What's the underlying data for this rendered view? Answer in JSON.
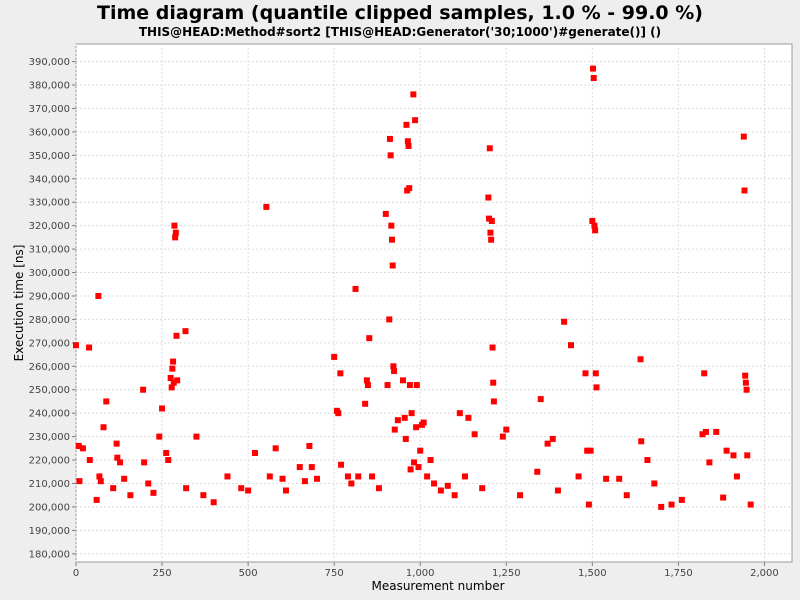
{
  "chart_data": {
    "type": "scatter",
    "title": "Time diagram (quantile clipped samples, 1.0 % - 99.0 %)",
    "subtitle": "THIS@HEAD:Method#sort2 [THIS@HEAD:Generator('30;1000')#generate()] ()",
    "xlabel": "Measurement number",
    "ylabel": "Execution time [ns]",
    "xlim": [
      0,
      2080
    ],
    "ylim": [
      176500,
      397500
    ],
    "xticks": [
      0,
      250,
      500,
      750,
      1000,
      1250,
      1500,
      1750,
      2000
    ],
    "xtick_labels": [
      "0",
      "250",
      "500",
      "750",
      "1,000",
      "1,250",
      "1,500",
      "1,750",
      "2,000"
    ],
    "yticks": [
      180000,
      190000,
      200000,
      210000,
      220000,
      230000,
      240000,
      250000,
      260000,
      270000,
      280000,
      290000,
      300000,
      310000,
      320000,
      330000,
      340000,
      350000,
      360000,
      370000,
      380000,
      390000
    ],
    "ytick_labels": [
      "180,000",
      "190,000",
      "200,000",
      "210,000",
      "220,000",
      "230,000",
      "240,000",
      "250,000",
      "260,000",
      "270,000",
      "280,000",
      "290,000",
      "300,000",
      "310,000",
      "320,000",
      "330,000",
      "340,000",
      "350,000",
      "360,000",
      "370,000",
      "380,000",
      "390,000"
    ],
    "grid": true,
    "marker_color": "#ff0000",
    "series": [
      {
        "values": [
          [
            0,
            269000
          ],
          [
            8,
            226000
          ],
          [
            10,
            211000
          ],
          [
            20,
            225000
          ],
          [
            38,
            268000
          ],
          [
            40,
            220000
          ],
          [
            60,
            203000
          ],
          [
            65,
            290000
          ],
          [
            68,
            213000
          ],
          [
            72,
            211000
          ],
          [
            80,
            234000
          ],
          [
            88,
            245000
          ],
          [
            108,
            208000
          ],
          [
            118,
            227000
          ],
          [
            120,
            221000
          ],
          [
            128,
            219000
          ],
          [
            140,
            212000
          ],
          [
            158,
            205000
          ],
          [
            195,
            250000
          ],
          [
            198,
            219000
          ],
          [
            210,
            210000
          ],
          [
            225,
            206000
          ],
          [
            242,
            230000
          ],
          [
            250,
            242000
          ],
          [
            262,
            223000
          ],
          [
            268,
            220000
          ],
          [
            275,
            255000
          ],
          [
            278,
            251000
          ],
          [
            280,
            259000
          ],
          [
            282,
            262000
          ],
          [
            284,
            253000
          ],
          [
            286,
            320000
          ],
          [
            288,
            315000
          ],
          [
            290,
            317000
          ],
          [
            292,
            273000
          ],
          [
            294,
            254000
          ],
          [
            318,
            275000
          ],
          [
            320,
            208000
          ],
          [
            350,
            230000
          ],
          [
            370,
            205000
          ],
          [
            400,
            202000
          ],
          [
            440,
            213000
          ],
          [
            480,
            208000
          ],
          [
            500,
            207000
          ],
          [
            520,
            223000
          ],
          [
            553,
            328000
          ],
          [
            563,
            213000
          ],
          [
            580,
            225000
          ],
          [
            600,
            212000
          ],
          [
            610,
            207000
          ],
          [
            650,
            217000
          ],
          [
            665,
            211000
          ],
          [
            678,
            226000
          ],
          [
            685,
            217000
          ],
          [
            700,
            212000
          ],
          [
            750,
            264000
          ],
          [
            758,
            241000
          ],
          [
            762,
            240000
          ],
          [
            768,
            257000
          ],
          [
            770,
            218000
          ],
          [
            790,
            213000
          ],
          [
            800,
            210000
          ],
          [
            812,
            293000
          ],
          [
            820,
            213000
          ],
          [
            840,
            244000
          ],
          [
            845,
            254000
          ],
          [
            848,
            252000
          ],
          [
            852,
            272000
          ],
          [
            860,
            213000
          ],
          [
            880,
            208000
          ],
          [
            900,
            325000
          ],
          [
            905,
            252000
          ],
          [
            910,
            280000
          ],
          [
            912,
            357000
          ],
          [
            914,
            350000
          ],
          [
            916,
            320000
          ],
          [
            918,
            314000
          ],
          [
            920,
            303000
          ],
          [
            922,
            260000
          ],
          [
            924,
            258000
          ],
          [
            926,
            233000
          ],
          [
            935,
            237000
          ],
          [
            950,
            254000
          ],
          [
            955,
            238000
          ],
          [
            958,
            229000
          ],
          [
            960,
            363000
          ],
          [
            962,
            335000
          ],
          [
            964,
            356000
          ],
          [
            966,
            354000
          ],
          [
            968,
            336000
          ],
          [
            970,
            252000
          ],
          [
            972,
            216000
          ],
          [
            975,
            240000
          ],
          [
            980,
            376000
          ],
          [
            982,
            219000
          ],
          [
            985,
            365000
          ],
          [
            988,
            234000
          ],
          [
            990,
            252000
          ],
          [
            995,
            217000
          ],
          [
            1000,
            224000
          ],
          [
            1005,
            235000
          ],
          [
            1010,
            236000
          ],
          [
            1020,
            213000
          ],
          [
            1030,
            220000
          ],
          [
            1040,
            210000
          ],
          [
            1060,
            207000
          ],
          [
            1080,
            209000
          ],
          [
            1100,
            205000
          ],
          [
            1115,
            240000
          ],
          [
            1130,
            213000
          ],
          [
            1140,
            238000
          ],
          [
            1158,
            231000
          ],
          [
            1180,
            208000
          ],
          [
            1198,
            332000
          ],
          [
            1200,
            323000
          ],
          [
            1202,
            353000
          ],
          [
            1204,
            317000
          ],
          [
            1206,
            314000
          ],
          [
            1208,
            322000
          ],
          [
            1210,
            268000
          ],
          [
            1212,
            253000
          ],
          [
            1214,
            245000
          ],
          [
            1240,
            230000
          ],
          [
            1250,
            233000
          ],
          [
            1290,
            205000
          ],
          [
            1340,
            215000
          ],
          [
            1350,
            246000
          ],
          [
            1370,
            227000
          ],
          [
            1385,
            229000
          ],
          [
            1400,
            207000
          ],
          [
            1418,
            279000
          ],
          [
            1438,
            269000
          ],
          [
            1460,
            213000
          ],
          [
            1480,
            257000
          ],
          [
            1485,
            224000
          ],
          [
            1490,
            201000
          ],
          [
            1495,
            224000
          ],
          [
            1500,
            322000
          ],
          [
            1502,
            387000
          ],
          [
            1504,
            383000
          ],
          [
            1506,
            320000
          ],
          [
            1508,
            318000
          ],
          [
            1510,
            257000
          ],
          [
            1512,
            251000
          ],
          [
            1540,
            212000
          ],
          [
            1578,
            212000
          ],
          [
            1600,
            205000
          ],
          [
            1640,
            263000
          ],
          [
            1642,
            228000
          ],
          [
            1660,
            220000
          ],
          [
            1680,
            210000
          ],
          [
            1700,
            200000
          ],
          [
            1730,
            201000
          ],
          [
            1760,
            203000
          ],
          [
            1820,
            231000
          ],
          [
            1825,
            257000
          ],
          [
            1830,
            232000
          ],
          [
            1840,
            219000
          ],
          [
            1860,
            232000
          ],
          [
            1880,
            204000
          ],
          [
            1890,
            224000
          ],
          [
            1910,
            222000
          ],
          [
            1920,
            213000
          ],
          [
            1940,
            358000
          ],
          [
            1942,
            335000
          ],
          [
            1944,
            256000
          ],
          [
            1946,
            253000
          ],
          [
            1948,
            250000
          ],
          [
            1950,
            222000
          ],
          [
            1960,
            201000
          ]
        ]
      }
    ]
  }
}
